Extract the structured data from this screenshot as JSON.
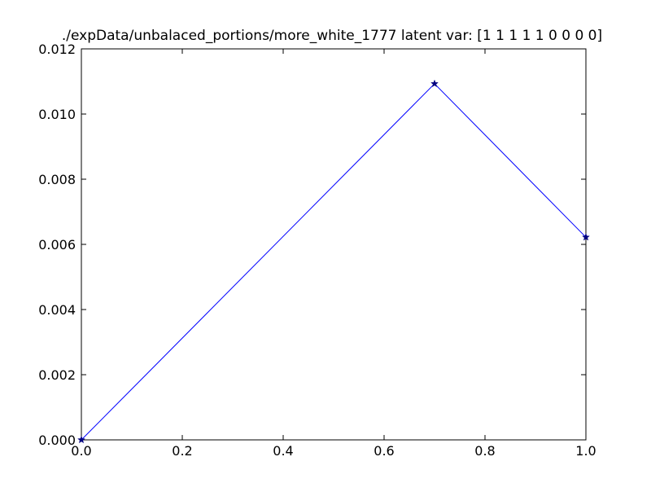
{
  "chart_data": {
    "type": "line",
    "title": "./expData/unbalaced_portions/more_white_1777 latent var: [1 1 1 1 1 0 0 0 0]",
    "xlabel": "",
    "ylabel": "",
    "xlim": [
      0.0,
      1.0
    ],
    "ylim": [
      0.0,
      0.012
    ],
    "x_ticks": [
      "0.0",
      "0.2",
      "0.4",
      "0.6",
      "0.8",
      "1.0"
    ],
    "y_ticks": [
      "0.000",
      "0.002",
      "0.004",
      "0.006",
      "0.008",
      "0.010",
      "0.012"
    ],
    "x_tick_values": [
      0.0,
      0.2,
      0.4,
      0.6,
      0.8,
      1.0
    ],
    "y_tick_values": [
      0.0,
      0.002,
      0.004,
      0.006,
      0.008,
      0.01,
      0.012
    ],
    "grid": false,
    "marker": "star",
    "series": [
      {
        "x": [
          0.0,
          0.7,
          1.0
        ],
        "y": [
          0.0,
          0.01093,
          0.00622
        ],
        "color": "#0000ff"
      }
    ]
  }
}
